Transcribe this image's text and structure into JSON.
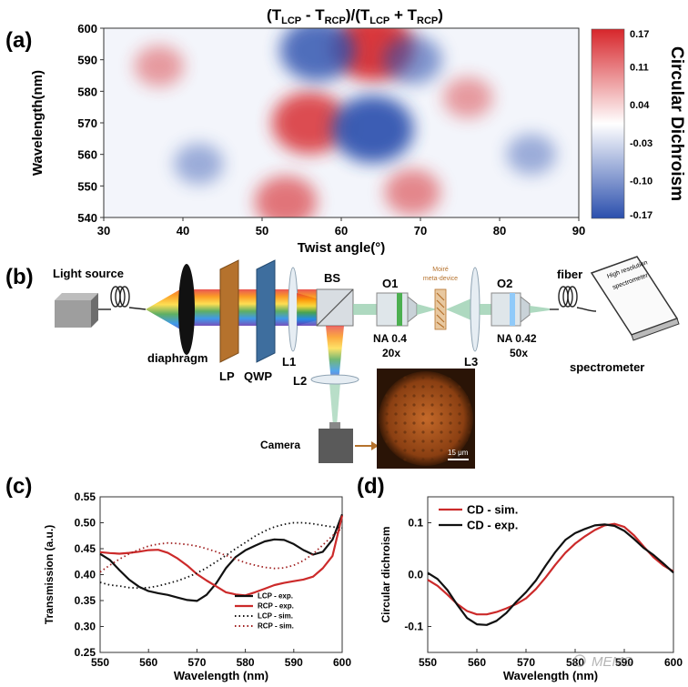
{
  "panel_a": {
    "letter": "(a)",
    "title_parts": [
      "(T",
      "LCP",
      " - T",
      "RCP",
      ")/(T",
      "LCP",
      " + T",
      "RCP",
      ")"
    ],
    "colorbar_title": "Circular Dichroism",
    "colorbar_ticks": [
      "0.17",
      "0.11",
      "0.04",
      "-0.03",
      "-0.10",
      "-0.17"
    ],
    "colors": {
      "positive": "#d7262b",
      "negative": "#2b4fad",
      "zero": "#ffffff"
    }
  },
  "panel_b": {
    "letter": "(b)",
    "labels": {
      "light_source": "Light source",
      "diaphragm": "diaphragm",
      "lp": "LP",
      "qwp": "QWP",
      "l1": "L1",
      "bs": "BS",
      "l2": "L2",
      "camera": "Camera",
      "o1": "O1",
      "na1": "NA 0.4",
      "mag1": "20x",
      "sample_a": "Moiré",
      "sample_b": "meta-device",
      "l3": "L3",
      "o2": "O2",
      "na2": "NA 0.42",
      "mag2": "50x",
      "fiber": "fiber",
      "spectrometer": "spectrometer",
      "screen_a": "High resolution",
      "screen_b": "spectrometer",
      "scalebar": "15 μm"
    }
  },
  "panel_c": {
    "letter": "(c)"
  },
  "panel_d": {
    "letter": "(d)"
  },
  "watermark": "MEMS",
  "chart_data": [
    {
      "type": "heatmap",
      "title": "(TLCP - TRCP)/(TLCP + TRCP)",
      "xlabel": "Twist angle(°)",
      "ylabel": "Wavelength(nm)",
      "xlim": [
        30,
        90
      ],
      "ylim": [
        540,
        600
      ],
      "xticks": [
        30,
        40,
        50,
        60,
        70,
        80,
        90
      ],
      "yticks": [
        540,
        550,
        560,
        570,
        580,
        590,
        600
      ],
      "colorbar_label": "Circular Dichroism",
      "zlim": [
        -0.17,
        0.17
      ],
      "features": [
        {
          "twist_angle": 64,
          "wavelength": 594,
          "value": 0.15
        },
        {
          "twist_angle": 56,
          "wavelength": 570,
          "value": 0.13
        },
        {
          "twist_angle": 53,
          "wavelength": 545,
          "value": 0.09
        },
        {
          "twist_angle": 69,
          "wavelength": 548,
          "value": 0.07
        },
        {
          "twist_angle": 76,
          "wavelength": 578,
          "value": 0.05
        },
        {
          "twist_angle": 37,
          "wavelength": 588,
          "value": 0.05
        },
        {
          "twist_angle": 64,
          "wavelength": 568,
          "value": -0.15
        },
        {
          "twist_angle": 57,
          "wavelength": 593,
          "value": -0.13
        },
        {
          "twist_angle": 69,
          "wavelength": 590,
          "value": -0.08
        },
        {
          "twist_angle": 42,
          "wavelength": 557,
          "value": -0.05
        },
        {
          "twist_angle": 84,
          "wavelength": 560,
          "value": -0.05
        }
      ]
    },
    {
      "type": "line",
      "xlabel": "Wavelength (nm)",
      "ylabel": "Transmission (a.u.)",
      "xlim": [
        550,
        600
      ],
      "ylim": [
        0.25,
        0.55
      ],
      "xticks": [
        550,
        560,
        570,
        580,
        590,
        600
      ],
      "yticks": [
        0.25,
        0.3,
        0.35,
        0.4,
        0.45,
        0.5,
        0.55
      ],
      "legend": "bottom-right",
      "x": [
        550,
        552,
        554,
        556,
        558,
        560,
        562,
        564,
        566,
        568,
        570,
        572,
        574,
        576,
        578,
        580,
        582,
        584,
        586,
        588,
        590,
        592,
        594,
        596,
        598,
        600
      ],
      "series": [
        {
          "name": "LCP - exp.",
          "color": "#111111",
          "style": "solid",
          "values": [
            0.44,
            0.425,
            0.405,
            0.39,
            0.38,
            0.372,
            0.365,
            0.358,
            0.352,
            0.35,
            0.352,
            0.365,
            0.385,
            0.41,
            0.43,
            0.445,
            0.458,
            0.468,
            0.47,
            0.465,
            0.455,
            0.445,
            0.44,
            0.448,
            0.47,
            0.515
          ]
        },
        {
          "name": "RCP - exp.",
          "color": "#cc2a2a",
          "style": "solid",
          "values": [
            0.44,
            0.438,
            0.44,
            0.445,
            0.448,
            0.448,
            0.445,
            0.438,
            0.43,
            0.42,
            0.405,
            0.39,
            0.375,
            0.362,
            0.36,
            0.362,
            0.37,
            0.375,
            0.378,
            0.38,
            0.385,
            0.392,
            0.4,
            0.415,
            0.435,
            0.51
          ]
        },
        {
          "name": "LCP - sim.",
          "color": "#111111",
          "style": "dotted",
          "values": [
            0.385,
            0.38,
            0.378,
            0.375,
            0.374,
            0.375,
            0.378,
            0.383,
            0.388,
            0.395,
            0.403,
            0.413,
            0.425,
            0.437,
            0.45,
            0.462,
            0.474,
            0.484,
            0.492,
            0.497,
            0.5,
            0.5,
            0.498,
            0.495,
            0.492,
            0.49
          ]
        },
        {
          "name": "RCP - sim.",
          "color": "#a02020",
          "style": "dotted",
          "values": [
            0.405,
            0.418,
            0.43,
            0.44,
            0.448,
            0.455,
            0.459,
            0.461,
            0.46,
            0.458,
            0.455,
            0.45,
            0.444,
            0.437,
            0.43,
            0.423,
            0.418,
            0.414,
            0.412,
            0.413,
            0.418,
            0.427,
            0.44,
            0.457,
            0.475,
            0.49
          ]
        }
      ]
    },
    {
      "type": "line",
      "xlabel": "Wavelength (nm)",
      "ylabel": "Circular dichroism",
      "xlim": [
        550,
        600
      ],
      "ylim": [
        -0.15,
        0.15
      ],
      "xticks": [
        550,
        560,
        570,
        580,
        590,
        600
      ],
      "yticks": [
        -0.1,
        0.0,
        0.1
      ],
      "legend": "top-left",
      "x": [
        550,
        552,
        554,
        556,
        558,
        560,
        562,
        564,
        566,
        568,
        570,
        572,
        574,
        576,
        578,
        580,
        582,
        584,
        586,
        588,
        590,
        592,
        594,
        596,
        598,
        600
      ],
      "series": [
        {
          "name": "CD - sim.",
          "color": "#cc2a2a",
          "style": "solid",
          "values": [
            -0.01,
            -0.025,
            -0.042,
            -0.057,
            -0.067,
            -0.073,
            -0.076,
            -0.075,
            -0.069,
            -0.058,
            -0.043,
            -0.024,
            -0.004,
            0.017,
            0.038,
            0.058,
            0.076,
            0.09,
            0.097,
            0.096,
            0.088,
            0.073,
            0.055,
            0.037,
            0.02,
            0.005
          ]
        },
        {
          "name": "CD - exp.",
          "color": "#111111",
          "style": "solid",
          "values": [
            0.0,
            -0.012,
            -0.03,
            -0.055,
            -0.08,
            -0.095,
            -0.1,
            -0.093,
            -0.075,
            -0.05,
            -0.03,
            -0.01,
            0.015,
            0.04,
            0.065,
            0.082,
            0.092,
            0.097,
            0.095,
            0.09,
            0.082,
            0.07,
            0.055,
            0.04,
            0.02,
            0.0
          ]
        }
      ]
    }
  ]
}
